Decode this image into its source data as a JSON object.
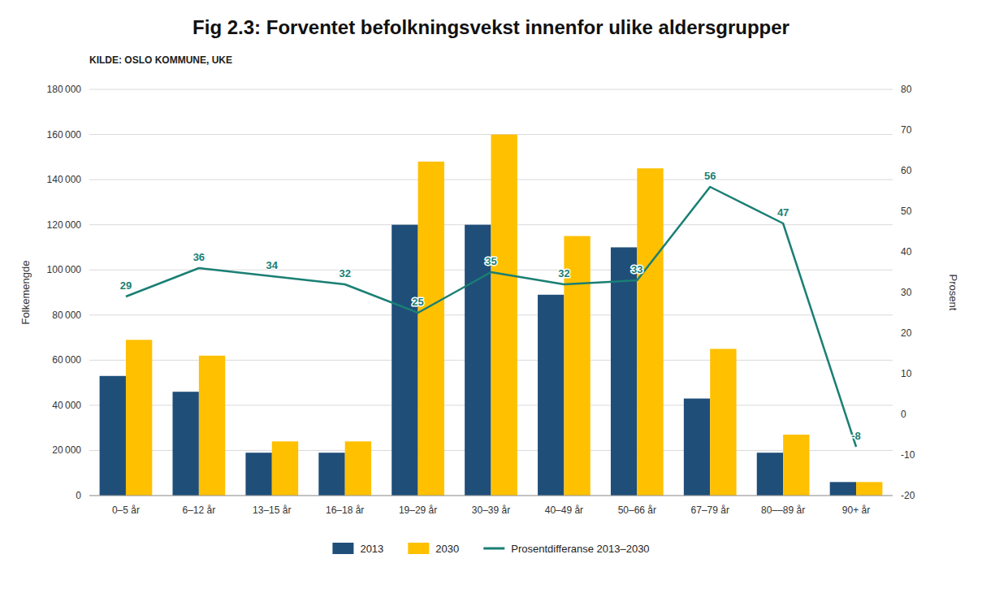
{
  "chart_data": {
    "type": "bar",
    "title": "Fig 2.3: Forventet befolkningsvekst innenfor ulike aldersgrupper",
    "annotations": [
      "KILDE: OSLO KOMMUNE, UKE"
    ],
    "ylabel": "Folkemengde",
    "y2label": "Prosent",
    "categories": [
      "0–5 år",
      "6–12 år",
      "13–15 år",
      "16–18 år",
      "19–29 år",
      "30–39 år",
      "40–49 år",
      "50–66 år",
      "67–79 år",
      "80––89 år",
      "90+ år"
    ],
    "series": [
      {
        "name": "2013",
        "color": "#1f4e79",
        "values": [
          53000,
          46000,
          19000,
          19000,
          120000,
          120000,
          89000,
          110000,
          43000,
          19000,
          6000
        ]
      },
      {
        "name": "2030",
        "color": "#ffc000",
        "values": [
          69000,
          62000,
          24000,
          24000,
          148000,
          160000,
          115000,
          145000,
          65000,
          27000,
          6000
        ]
      },
      {
        "name": "Prosentdifferanse 2013–2030",
        "type": "line",
        "axis": "y2",
        "color": "#1a7f74",
        "data_labels": true,
        "values": [
          29,
          36,
          34,
          32,
          25,
          35,
          32,
          33,
          56,
          47,
          -8
        ]
      }
    ],
    "ylim": [
      0,
      180000
    ],
    "yticks": [
      0,
      {
        "value": 20000,
        "label": "20 000"
      },
      {
        "value": 40000,
        "label": "40 000"
      },
      {
        "value": 60000,
        "label": "60 000"
      },
      {
        "value": 80000,
        "label": "80 000"
      },
      {
        "value": 100000,
        "label": "100 000"
      },
      {
        "value": 120000,
        "label": "120 000"
      },
      {
        "value": 140000,
        "label": "140 000"
      },
      {
        "value": 160000,
        "label": "160 000"
      },
      {
        "value": 180000,
        "label": "180 000"
      }
    ],
    "y2lim": [
      -20,
      80
    ],
    "y2ticks": [
      -20,
      -10,
      0,
      10,
      20,
      30,
      40,
      50,
      60,
      70,
      80
    ],
    "grid": true,
    "legend": "bottom"
  }
}
